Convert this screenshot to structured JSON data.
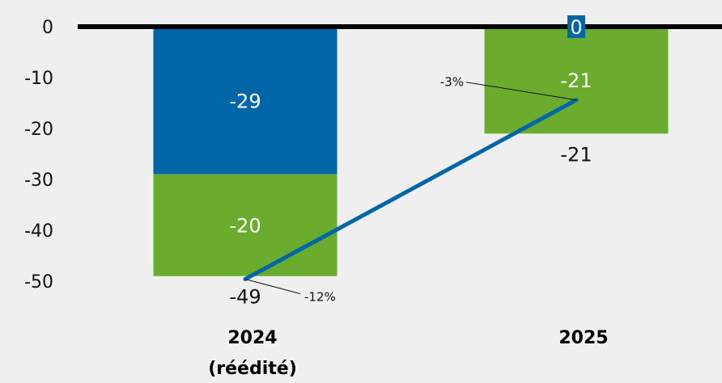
{
  "chart_data": {
    "type": "bar",
    "stacked": true,
    "title": "",
    "xlabel": "",
    "ylabel": "",
    "ylim": [
      -50,
      0
    ],
    "yticks": [
      0,
      -10,
      -20,
      -30,
      -40,
      -50
    ],
    "ytick_labels": [
      "0",
      "-10",
      "-20",
      "-30",
      "-40",
      "-50"
    ],
    "grid": false,
    "categories": [
      {
        "line1": "2024",
        "line2": "(réédité)"
      },
      {
        "line1": "2025",
        "line2": ""
      }
    ],
    "series": [
      {
        "color": "#0066a8",
        "values": [
          -29,
          0
        ],
        "labels": [
          "-29",
          "0"
        ]
      },
      {
        "color": "#6aac2e",
        "values": [
          -20,
          -21
        ],
        "labels": [
          "-20",
          "-21"
        ]
      }
    ],
    "totals": [
      -49,
      -21
    ],
    "total_labels": [
      "-49",
      "-21"
    ],
    "line_series": {
      "color": "#0066a8",
      "values": [
        -49.6,
        -14.4
      ],
      "labels": [
        "-12%",
        "-3%"
      ]
    },
    "colors": {
      "zero_line": "#000000",
      "background": "#efefef"
    }
  }
}
